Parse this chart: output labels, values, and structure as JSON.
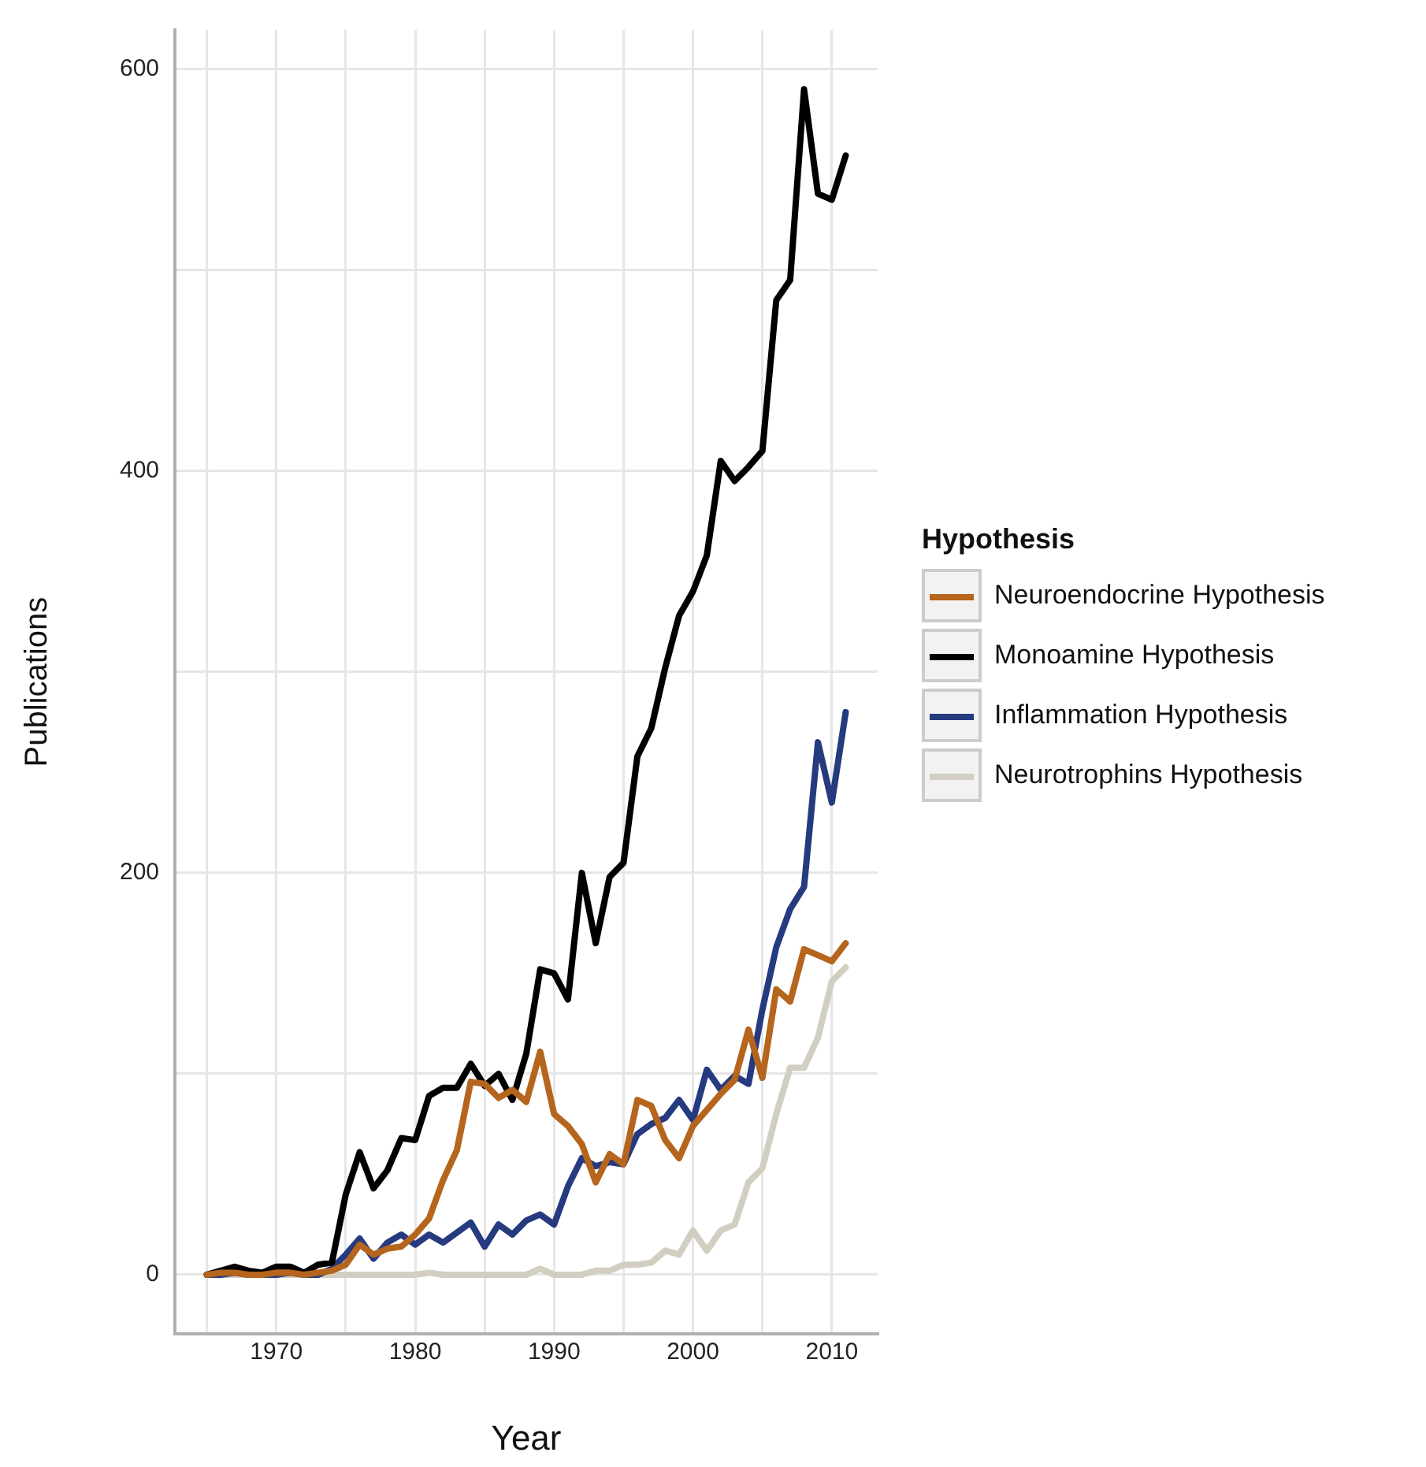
{
  "chart_data": {
    "type": "line",
    "xlabel": "Year",
    "ylabel": "Publications",
    "legend_title": "Hypothesis",
    "legend": "right",
    "x": [
      1965,
      1966,
      1967,
      1968,
      1969,
      1970,
      1971,
      1972,
      1973,
      1974,
      1975,
      1976,
      1977,
      1978,
      1979,
      1980,
      1981,
      1982,
      1983,
      1984,
      1985,
      1986,
      1987,
      1988,
      1989,
      1990,
      1991,
      1992,
      1993,
      1994,
      1995,
      1996,
      1997,
      1998,
      1999,
      2000,
      2001,
      2002,
      2003,
      2004,
      2005,
      2006,
      2007,
      2008,
      2009,
      2010,
      2011
    ],
    "series": [
      {
        "name": "Neuroendocrine Hypothesis",
        "color": "#b5651d",
        "values": [
          0,
          1,
          1,
          0,
          0,
          1,
          1,
          0,
          1,
          2,
          5,
          15,
          10,
          13,
          14,
          20,
          28,
          47,
          62,
          96,
          95,
          88,
          92,
          86,
          111,
          80,
          74,
          65,
          46,
          60,
          55,
          87,
          84,
          67,
          58,
          74,
          82,
          90,
          97,
          122,
          98,
          142,
          136,
          162,
          159,
          156,
          165
        ]
      },
      {
        "name": "Monoamine Hypothesis",
        "color": "#000000",
        "values": [
          0,
          2,
          4,
          2,
          1,
          4,
          4,
          1,
          5,
          6,
          40,
          61,
          43,
          52,
          68,
          67,
          89,
          93,
          93,
          105,
          94,
          100,
          87,
          110,
          152,
          150,
          137,
          200,
          165,
          198,
          205,
          258,
          272,
          302,
          328,
          340,
          358,
          405,
          395,
          402,
          410,
          485,
          495,
          590,
          538,
          535,
          557
        ]
      },
      {
        "name": "Inflammation Hypothesis",
        "color": "#253a7f",
        "values": [
          0,
          0,
          1,
          0,
          0,
          0,
          1,
          0,
          0,
          3,
          10,
          18,
          8,
          16,
          20,
          15,
          20,
          16,
          21,
          26,
          14,
          25,
          20,
          27,
          30,
          25,
          44,
          58,
          54,
          56,
          55,
          70,
          75,
          78,
          87,
          77,
          102,
          92,
          99,
          95,
          132,
          163,
          182,
          193,
          265,
          235,
          280
        ]
      },
      {
        "name": "Neurotrophins Hypothesis",
        "color": "#d2cfc2",
        "values": [
          0,
          0,
          0,
          0,
          0,
          0,
          0,
          0,
          0,
          0,
          0,
          0,
          0,
          0,
          0,
          0,
          1,
          0,
          0,
          0,
          0,
          0,
          0,
          0,
          3,
          0,
          0,
          0,
          2,
          2,
          5,
          5,
          6,
          12,
          10,
          22,
          12,
          22,
          25,
          46,
          53,
          80,
          103,
          103,
          118,
          146,
          153
        ]
      }
    ],
    "xlim": [
      1962.7,
      2013.3
    ],
    "xticks": [
      {
        "value": 1965,
        "label": null
      },
      1970,
      {
        "value": 1975,
        "label": null
      },
      1980,
      {
        "value": 1985,
        "label": null
      },
      1990,
      {
        "value": 1995,
        "label": null
      },
      2000,
      {
        "value": 2005,
        "label": null
      },
      2010
    ],
    "ylim": [
      -29.5,
      619.5
    ],
    "yticks": [
      0,
      {
        "value": 100,
        "label": null
      },
      200,
      {
        "value": 300,
        "label": null
      },
      400,
      {
        "value": 500,
        "label": null
      },
      600
    ],
    "grid": true,
    "marker": "none",
    "line_style": "solid"
  }
}
